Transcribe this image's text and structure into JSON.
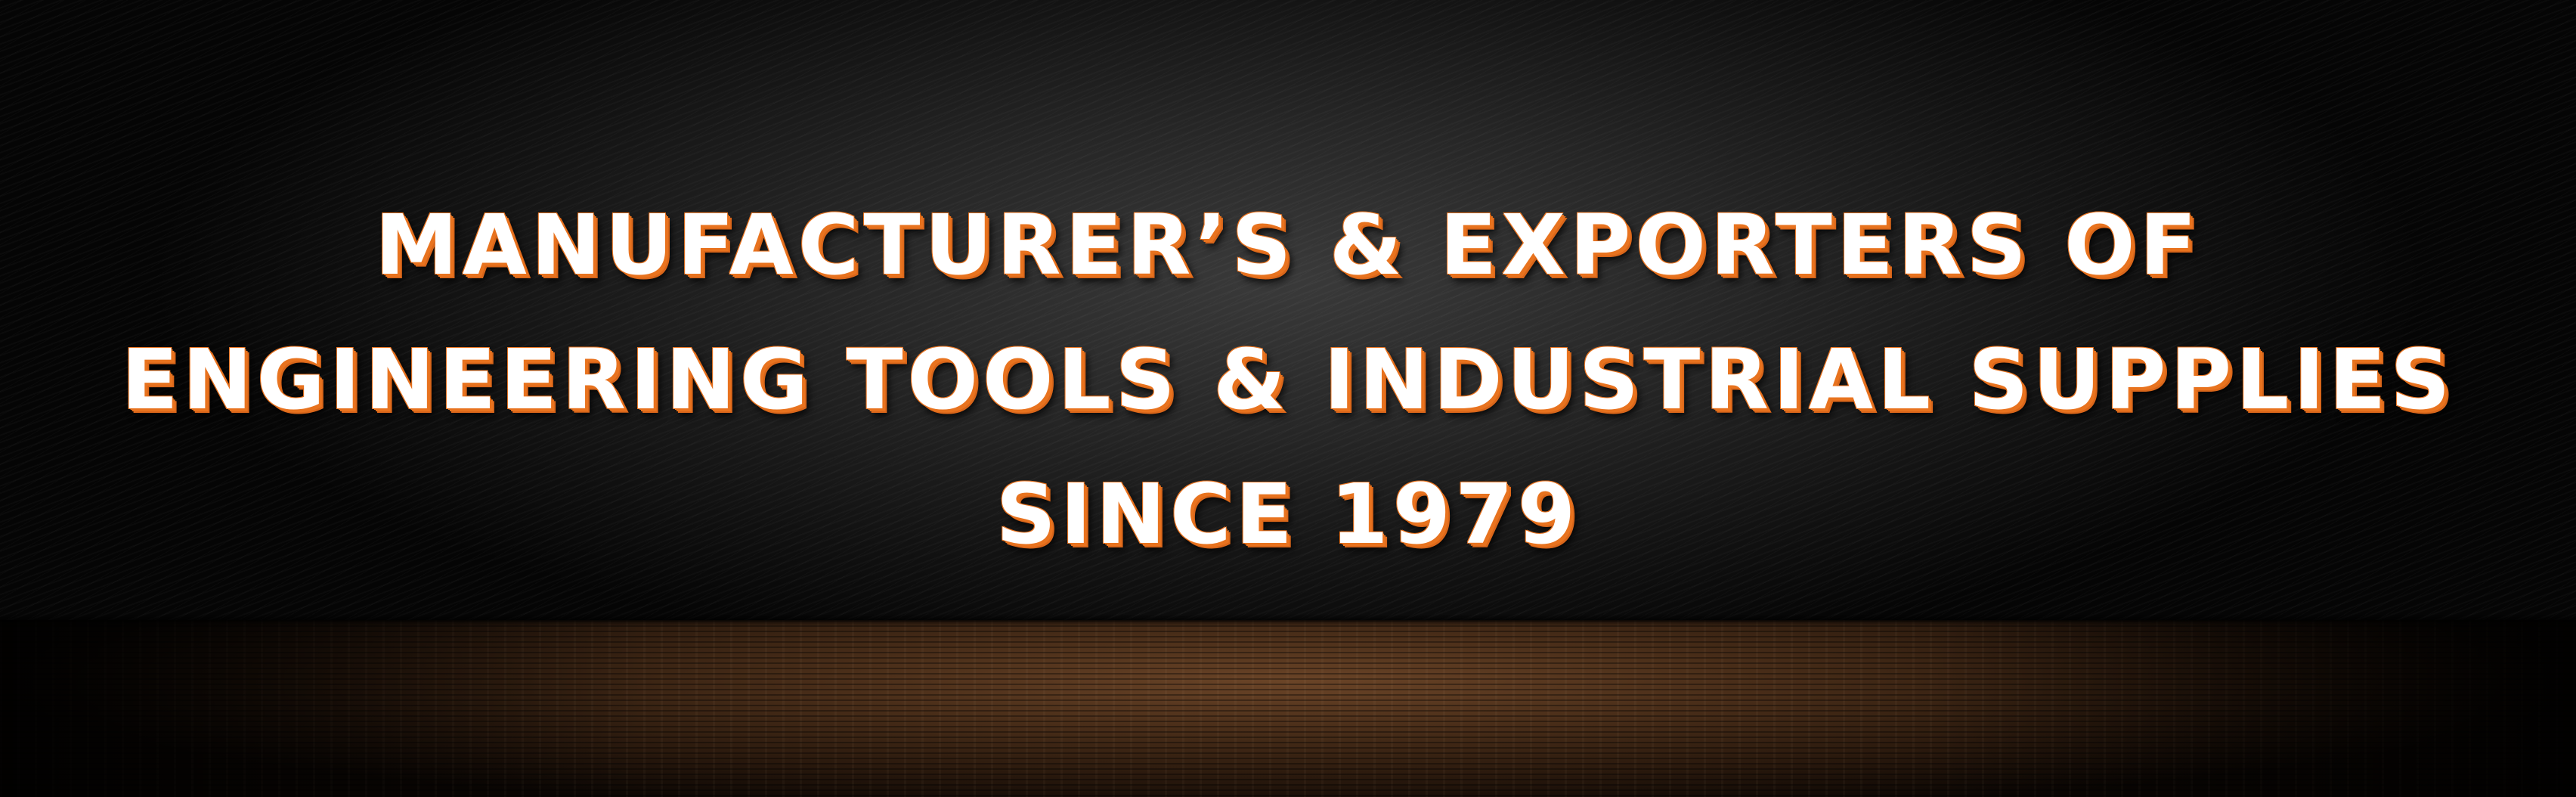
{
  "banner": {
    "lines": [
      "MANUFACTURER’S & EXPORTERS OF",
      "ENGINEERING TOOLS & INDUSTRIAL SUPPLIES",
      "SINCE 1979"
    ]
  },
  "colors": {
    "text": "#ffffff",
    "outline": "#e8731f",
    "wall": "#262626",
    "floor": "#4a2e19"
  }
}
